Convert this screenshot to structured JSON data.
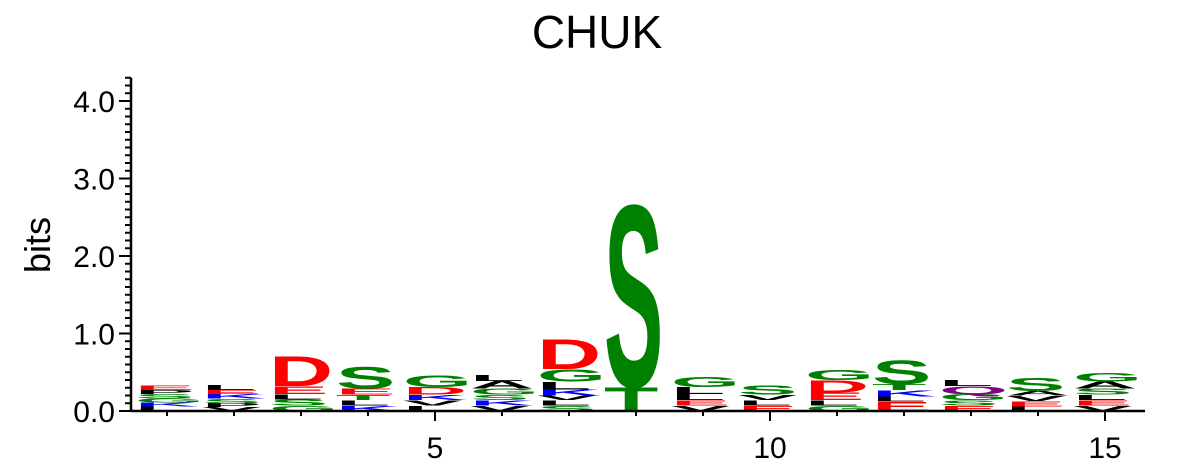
{
  "chart_data": {
    "type": "sequence-logo",
    "title": "CHUK",
    "ylabel": "bits",
    "xlabel": "",
    "ylim": [
      0,
      4.3
    ],
    "yticks": [
      "0.0",
      "1.0",
      "2.0",
      "3.0",
      "4.0"
    ],
    "xticks": [
      "5",
      "10",
      "15"
    ],
    "xtick_positions": [
      5,
      10,
      15
    ],
    "positions": [
      1,
      2,
      3,
      4,
      5,
      6,
      7,
      8,
      9,
      10,
      11,
      12,
      13,
      14,
      15
    ],
    "colors": {
      "acidic": "#ff0000",
      "polar": "#008000",
      "basic": "#0000ff",
      "hydrophobic": "#000000",
      "amide": "#800080"
    },
    "columns": [
      {
        "position": 1,
        "letters": [
          {
            "aa": "L",
            "bits": 0.06
          },
          {
            "aa": "K",
            "bits": 0.05
          },
          {
            "aa": "G",
            "bits": 0.05
          },
          {
            "aa": "S",
            "bits": 0.06
          },
          {
            "aa": "P",
            "bits": 0.05
          },
          {
            "aa": "E",
            "bits": 0.06
          }
        ]
      },
      {
        "position": 2,
        "letters": [
          {
            "aa": "V",
            "bits": 0.05
          },
          {
            "aa": "P",
            "bits": 0.05
          },
          {
            "aa": "S",
            "bits": 0.06
          },
          {
            "aa": "K",
            "bits": 0.06
          },
          {
            "aa": "E",
            "bits": 0.05
          },
          {
            "aa": "L",
            "bits": 0.07
          }
        ]
      },
      {
        "position": 3,
        "letters": [
          {
            "aa": "G",
            "bits": 0.07
          },
          {
            "aa": "S",
            "bits": 0.08
          },
          {
            "aa": "L",
            "bits": 0.07
          },
          {
            "aa": "E",
            "bits": 0.1
          },
          {
            "aa": "D",
            "bits": 0.4
          }
        ]
      },
      {
        "position": 4,
        "letters": [
          {
            "aa": "K",
            "bits": 0.07
          },
          {
            "aa": "L",
            "bits": 0.07
          },
          {
            "aa": "T",
            "bits": 0.07
          },
          {
            "aa": "E",
            "bits": 0.08
          },
          {
            "aa": "S",
            "bits": 0.29
          }
        ]
      },
      {
        "position": 5,
        "letters": [
          {
            "aa": "L",
            "bits": 0.07
          },
          {
            "aa": "V",
            "bits": 0.07
          },
          {
            "aa": "K",
            "bits": 0.07
          },
          {
            "aa": "D",
            "bits": 0.1
          },
          {
            "aa": "G",
            "bits": 0.15
          }
        ]
      },
      {
        "position": 6,
        "letters": [
          {
            "aa": "V",
            "bits": 0.07
          },
          {
            "aa": "K",
            "bits": 0.07
          },
          {
            "aa": "S",
            "bits": 0.07
          },
          {
            "aa": "G",
            "bits": 0.08
          },
          {
            "aa": "A",
            "bits": 0.1
          },
          {
            "aa": "L",
            "bits": 0.08
          }
        ]
      },
      {
        "position": 7,
        "letters": [
          {
            "aa": "S",
            "bits": 0.07
          },
          {
            "aa": "L",
            "bits": 0.07
          },
          {
            "aa": "V",
            "bits": 0.06
          },
          {
            "aa": "K",
            "bits": 0.08
          },
          {
            "aa": "L",
            "bits": 0.1
          },
          {
            "aa": "G",
            "bits": 0.16
          },
          {
            "aa": "D",
            "bits": 0.4
          }
        ]
      },
      {
        "position": 8,
        "letters": [
          {
            "aa": "T",
            "bits": 0.32
          },
          {
            "aa": "S",
            "bits": 2.42
          }
        ]
      },
      {
        "position": 9,
        "letters": [
          {
            "aa": "V",
            "bits": 0.07
          },
          {
            "aa": "E",
            "bits": 0.07
          },
          {
            "aa": "L",
            "bits": 0.08
          },
          {
            "aa": "L",
            "bits": 0.09
          },
          {
            "aa": "G",
            "bits": 0.14
          }
        ]
      },
      {
        "position": 10,
        "letters": [
          {
            "aa": "E",
            "bits": 0.07
          },
          {
            "aa": "L",
            "bits": 0.07
          },
          {
            "aa": "V",
            "bits": 0.07
          },
          {
            "aa": "S",
            "bits": 0.12
          }
        ]
      },
      {
        "position": 11,
        "letters": [
          {
            "aa": "G",
            "bits": 0.07
          },
          {
            "aa": "L",
            "bits": 0.07
          },
          {
            "aa": "E",
            "bits": 0.1
          },
          {
            "aa": "D",
            "bits": 0.16
          },
          {
            "aa": "G",
            "bits": 0.14
          }
        ]
      },
      {
        "position": 12,
        "letters": [
          {
            "aa": "E",
            "bits": 0.12
          },
          {
            "aa": "L",
            "bits": 0.07
          },
          {
            "aa": "K",
            "bits": 0.08
          },
          {
            "aa": "T",
            "bits": 0.08
          },
          {
            "aa": "S",
            "bits": 0.32
          }
        ]
      },
      {
        "position": 13,
        "letters": [
          {
            "aa": "E",
            "bits": 0.07
          },
          {
            "aa": "S",
            "bits": 0.07
          },
          {
            "aa": "G",
            "bits": 0.08
          },
          {
            "aa": "Q",
            "bits": 0.1
          },
          {
            "aa": "L",
            "bits": 0.08
          }
        ]
      },
      {
        "position": 14,
        "letters": [
          {
            "aa": "L",
            "bits": 0.06
          },
          {
            "aa": "E",
            "bits": 0.07
          },
          {
            "aa": "V",
            "bits": 0.07
          },
          {
            "aa": "A",
            "bits": 0.06
          },
          {
            "aa": "S",
            "bits": 0.17
          }
        ]
      },
      {
        "position": 15,
        "letters": [
          {
            "aa": "V",
            "bits": 0.07
          },
          {
            "aa": "E",
            "bits": 0.07
          },
          {
            "aa": "L",
            "bits": 0.07
          },
          {
            "aa": "S",
            "bits": 0.08
          },
          {
            "aa": "A",
            "bits": 0.09
          },
          {
            "aa": "G",
            "bits": 0.11
          }
        ]
      }
    ]
  }
}
